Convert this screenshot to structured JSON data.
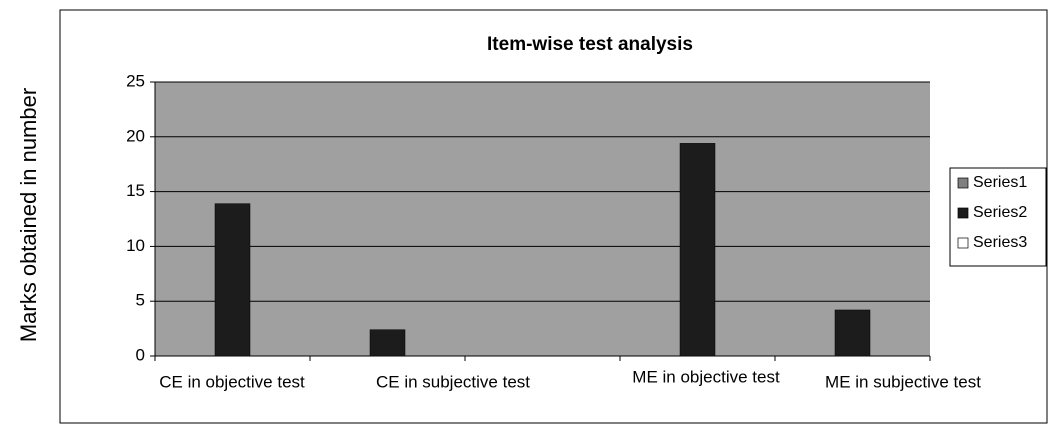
{
  "chart_data": {
    "type": "bar",
    "title": "Item-wise test analysis",
    "y_label": "Marks obtained in number",
    "categories": [
      "CE  in objective test",
      "CE in subjective  test",
      null,
      "ME  in objective test",
      "ME in subjective test"
    ],
    "series": [
      {
        "name": "Series1",
        "color": "#808080",
        "values": [
          null,
          null,
          null,
          null,
          null
        ]
      },
      {
        "name": "Series2",
        "color": "#1c1c1c",
        "values": [
          13.9,
          2.4,
          null,
          19.4,
          4.2
        ]
      },
      {
        "name": "Series3",
        "color": "#ffffff",
        "values": [
          null,
          null,
          null,
          null,
          null
        ]
      }
    ],
    "ylim": [
      0,
      25
    ],
    "yticks": [
      0,
      5,
      10,
      15,
      20,
      25
    ],
    "grid": true,
    "legend": "right",
    "plot_background": "#a0a0a0"
  }
}
